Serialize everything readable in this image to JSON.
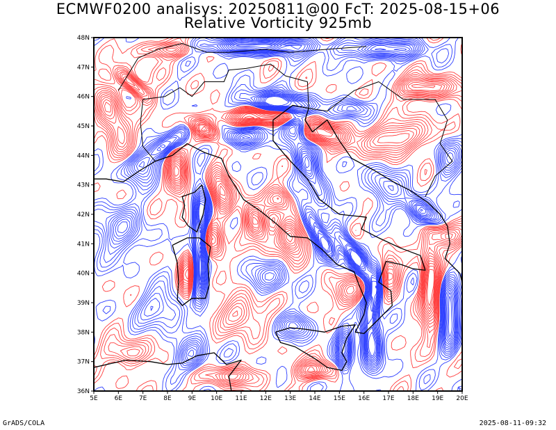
{
  "title": {
    "line1": "ECMWF0200 analisys: 20250811@00 FcT: 2025-08-15+06",
    "line2": "Relative Vorticity 925mb"
  },
  "map": {
    "variable": "relative vorticity",
    "level": "925mb",
    "lon_range": [
      5,
      20
    ],
    "lat_range": [
      36,
      48
    ],
    "positive_color": "#ff3b3b",
    "negative_color": "#2a3cff",
    "coast_color": "#000000",
    "lat_ticks": [
      "48N",
      "47N",
      "46N",
      "45N",
      "44N",
      "43N",
      "42N",
      "41N",
      "40N",
      "39N",
      "38N",
      "37N",
      "36N"
    ],
    "lon_ticks": [
      "5E",
      "6E",
      "7E",
      "8E",
      "9E",
      "10E",
      "11E",
      "12E",
      "13E",
      "14E",
      "15E",
      "16E",
      "17E",
      "18E",
      "19E",
      "20E"
    ]
  },
  "footer": {
    "left": "GrADS/COLA",
    "right": "2025-08-11-09:32"
  }
}
